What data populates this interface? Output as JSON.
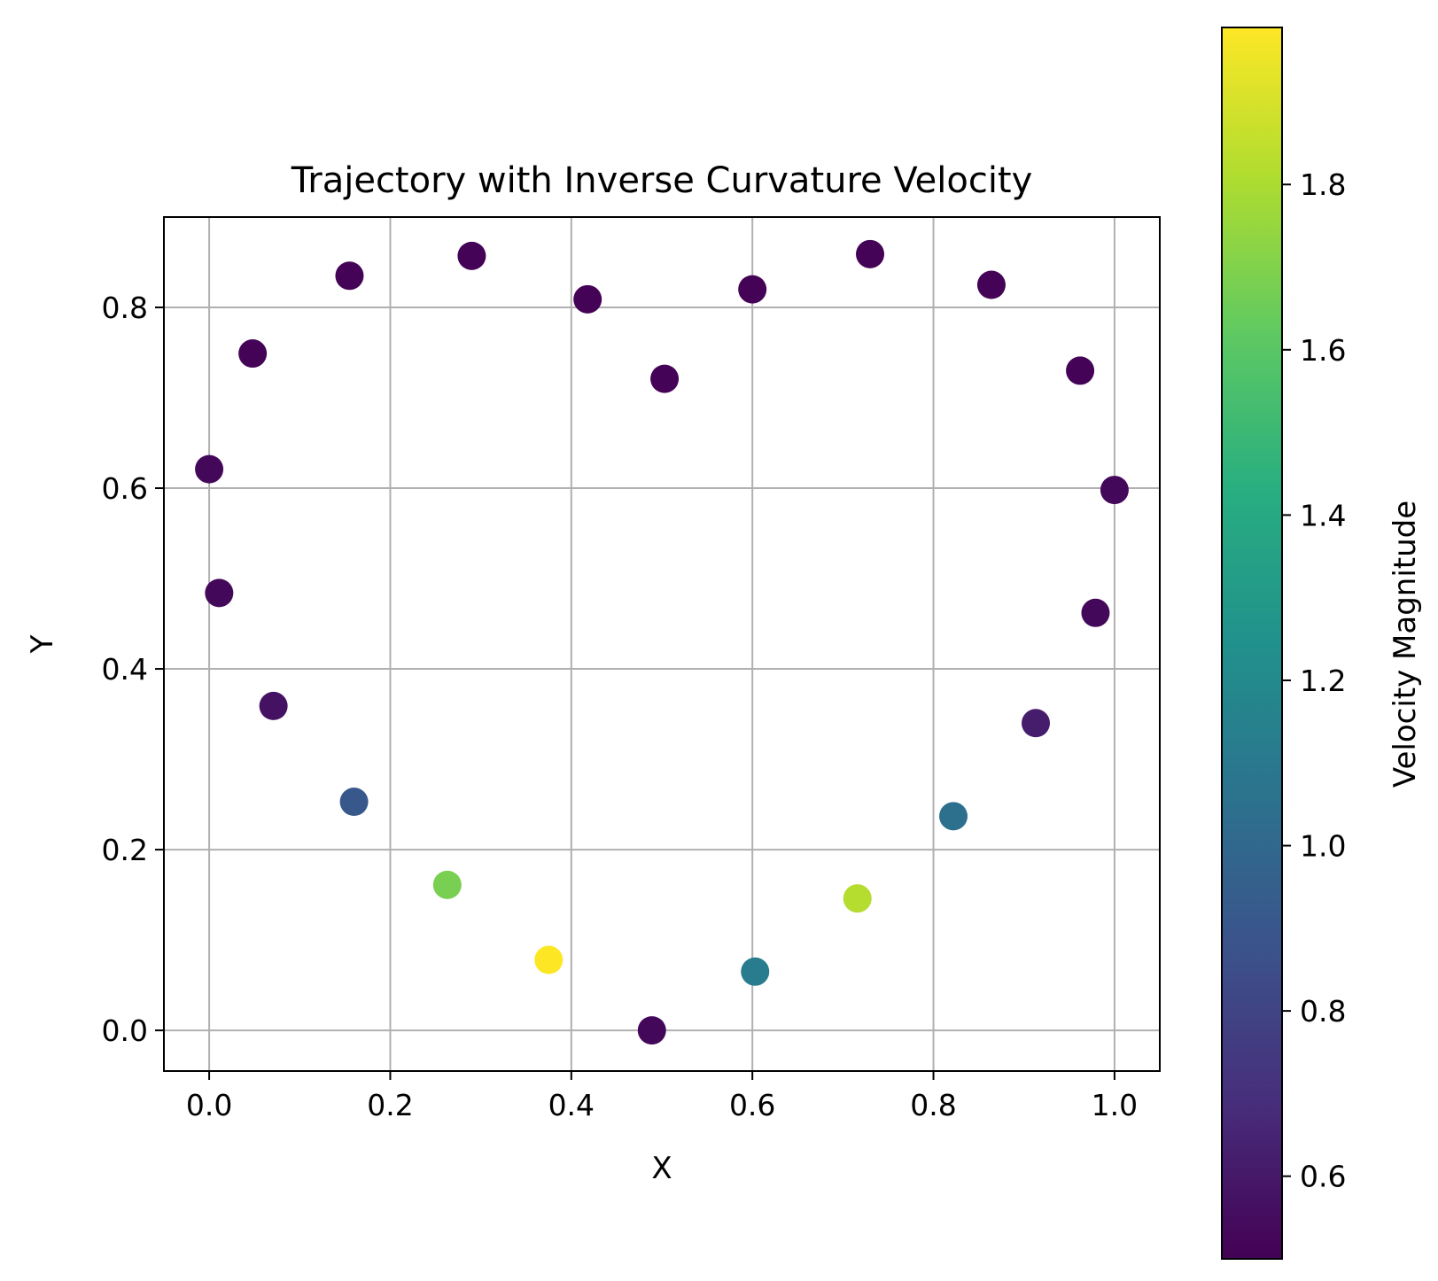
{
  "chart_data": {
    "type": "scatter",
    "title": "Trajectory with Inverse Curvature Velocity",
    "xlabel": "X",
    "ylabel": "Y",
    "xlim": [
      -0.05,
      1.05
    ],
    "ylim": [
      -0.045,
      0.9
    ],
    "xticks": [
      0.0,
      0.2,
      0.4,
      0.6,
      0.8,
      1.0
    ],
    "xtick_labels": [
      "0.0",
      "0.2",
      "0.4",
      "0.6",
      "0.8",
      "1.0"
    ],
    "yticks": [
      0.0,
      0.2,
      0.4,
      0.6,
      0.8
    ],
    "ytick_labels": [
      "0.0",
      "0.2",
      "0.4",
      "0.6",
      "0.8"
    ],
    "grid": true,
    "colormap": "viridis",
    "colorbar": {
      "label": "Velocity Magnitude",
      "range": [
        0.5,
        1.99
      ],
      "ticks": [
        0.6,
        0.8,
        1.0,
        1.2,
        1.4,
        1.6,
        1.8
      ],
      "tick_labels": [
        "0.6",
        "0.8",
        "1.0",
        "1.2",
        "1.4",
        "1.6",
        "1.8"
      ]
    },
    "points": [
      {
        "x": 0.489,
        "y": 0.0,
        "v": 0.53
      },
      {
        "x": 0.603,
        "y": 0.065,
        "v": 1.12
      },
      {
        "x": 0.716,
        "y": 0.146,
        "v": 1.82
      },
      {
        "x": 0.822,
        "y": 0.237,
        "v": 1.05
      },
      {
        "x": 0.913,
        "y": 0.34,
        "v": 0.62
      },
      {
        "x": 0.979,
        "y": 0.462,
        "v": 0.53
      },
      {
        "x": 1.0,
        "y": 0.598,
        "v": 0.53
      },
      {
        "x": 0.962,
        "y": 0.73,
        "v": 0.51
      },
      {
        "x": 0.864,
        "y": 0.825,
        "v": 0.51
      },
      {
        "x": 0.73,
        "y": 0.859,
        "v": 0.51
      },
      {
        "x": 0.6,
        "y": 0.82,
        "v": 0.51
      },
      {
        "x": 0.503,
        "y": 0.721,
        "v": 0.51
      },
      {
        "x": 0.418,
        "y": 0.809,
        "v": 0.51
      },
      {
        "x": 0.29,
        "y": 0.857,
        "v": 0.51
      },
      {
        "x": 0.155,
        "y": 0.835,
        "v": 0.51
      },
      {
        "x": 0.048,
        "y": 0.749,
        "v": 0.51
      },
      {
        "x": 0.0,
        "y": 0.621,
        "v": 0.53
      },
      {
        "x": 0.011,
        "y": 0.484,
        "v": 0.53
      },
      {
        "x": 0.071,
        "y": 0.359,
        "v": 0.57
      },
      {
        "x": 0.16,
        "y": 0.253,
        "v": 0.91
      },
      {
        "x": 0.263,
        "y": 0.161,
        "v": 1.68
      },
      {
        "x": 0.375,
        "y": 0.078,
        "v": 1.99
      }
    ]
  }
}
